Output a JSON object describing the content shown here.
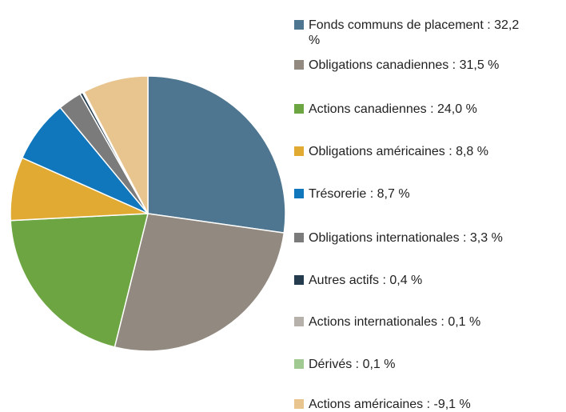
{
  "chart_data": {
    "type": "pie",
    "categories": [
      "Fonds communs de placement : 32,2 %",
      "Obligations canadiennes : 31,5 %",
      "Actions canadiennes : 24,0 %",
      "Obligations américaines : 8,8 %",
      "Trésorerie : 8,7 %",
      "Obligations internationales : 3,3 %",
      "Autres actifs : 0,4 %",
      "Actions internationales : 0,1 %",
      "Dérivés : 0,1 %",
      "Actions américaines : -9,1 %"
    ],
    "values": [
      32.2,
      31.5,
      24.0,
      8.8,
      8.7,
      3.3,
      0.4,
      0.1,
      0.1,
      -9.1
    ],
    "colors": [
      "#4f7690",
      "#928a80",
      "#6ca542",
      "#e1aa32",
      "#1077bd",
      "#7b7b7b",
      "#243c4e",
      "#b6b1ab",
      "#a0ca92",
      "#e8c48f"
    ],
    "legend": "right"
  }
}
